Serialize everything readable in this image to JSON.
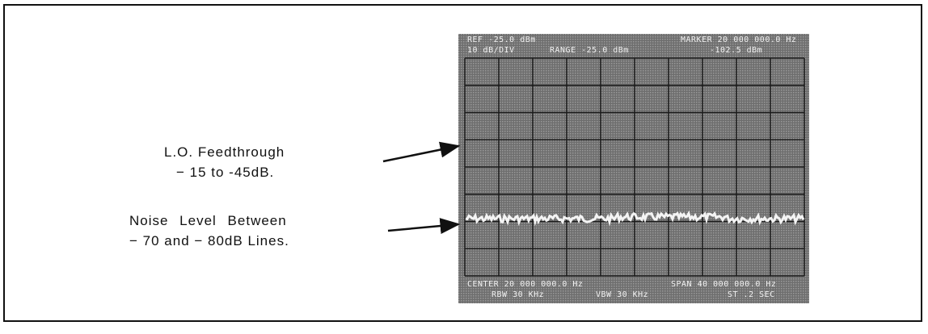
{
  "screen": {
    "header": [
      "REF -25.0 dBm",
      "MARKER 20 000 000.0 Hz",
      "10 dB/DIV",
      "RANGE -25.0 dBm",
      "-102.5 dBm"
    ],
    "footer": [
      "CENTER 20 000 000.0 Hz",
      "SPAN 40 000 000.0 Hz",
      "RBW 30 KHz",
      "VBW 30 KHz",
      "ST .2 SEC"
    ]
  },
  "annotations": [
    {
      "lines": [
        "L.O. Feedthrough",
        "− 15 to -45dB."
      ]
    },
    {
      "lines": [
        "Noise Level Between",
        "− 70 and − 80dB Lines."
      ]
    }
  ]
}
